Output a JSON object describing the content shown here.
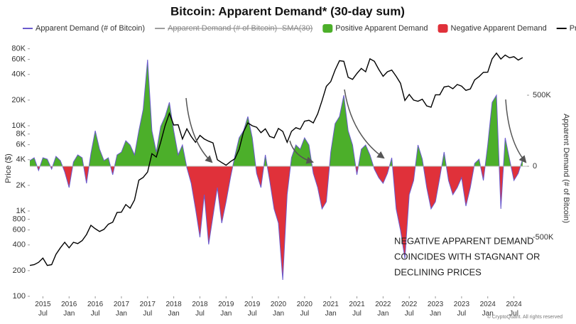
{
  "chart_data": {
    "type": "dual-axis-area-line",
    "title": "Bitcoin: Apparent Demand* (30-day sum)",
    "y_label": "Price ($)",
    "y2_label": "Apparent Demand (# of Bitcoin)",
    "annotation": [
      "NEGATIVE APPARENT DEMAND",
      "COINCIDES WITH STAGNANT OR",
      "DECLINING PRICES"
    ],
    "copyright": "© CryptoQuant. All rights reserved",
    "log_y": true,
    "xlim": [
      "2015-04",
      "2024-10"
    ],
    "xticks": [
      {
        "value": "2015-07",
        "label": "2015 Jul"
      },
      {
        "value": "2016-01",
        "label": "2016 Jan"
      },
      {
        "value": "2016-07",
        "label": "2016 Jul"
      },
      {
        "value": "2017-01",
        "label": "2017 Jan"
      },
      {
        "value": "2017-07",
        "label": "2017 Jul"
      },
      {
        "value": "2018-01",
        "label": "2018 Jan"
      },
      {
        "value": "2018-07",
        "label": "2018 Jul"
      },
      {
        "value": "2019-01",
        "label": "2019 Jan"
      },
      {
        "value": "2019-07",
        "label": "2019 Jul"
      },
      {
        "value": "2020-01",
        "label": "2020 Jan"
      },
      {
        "value": "2020-07",
        "label": "2020 Jul"
      },
      {
        "value": "2021-01",
        "label": "2021 Jan"
      },
      {
        "value": "2021-07",
        "label": "2021 Jul"
      },
      {
        "value": "2022-01",
        "label": "2022 Jan"
      },
      {
        "value": "2022-07",
        "label": "2022 Jul"
      },
      {
        "value": "2023-01",
        "label": "2023 Jan"
      },
      {
        "value": "2023-07",
        "label": "2023 Jul"
      },
      {
        "value": "2024-01",
        "label": "2024 Jan"
      },
      {
        "value": "2024-07",
        "label": "2024 Jul"
      }
    ],
    "ylim": [
      100,
      100000
    ],
    "yticks": [
      100,
      200,
      400,
      600,
      800,
      {
        "value": 1000,
        "label": "1K"
      },
      {
        "value": 2000,
        "label": "2K"
      },
      {
        "value": 4000,
        "label": "4K"
      },
      {
        "value": 6000,
        "label": "6K"
      },
      {
        "value": 8000,
        "label": "8K"
      },
      {
        "value": 10000,
        "label": "10K"
      },
      {
        "value": 20000,
        "label": "20K"
      },
      {
        "value": 40000,
        "label": "40K"
      },
      {
        "value": 60000,
        "label": "60K"
      },
      {
        "value": 80000,
        "label": "80K"
      }
    ],
    "y2lim": [
      -915000,
      885000
    ],
    "y2ticks": [
      {
        "value": -500000,
        "label": "-500K"
      },
      0,
      {
        "value": 500000,
        "label": "500K"
      }
    ],
    "x": [
      "2015-04",
      "2015-05",
      "2015-06",
      "2015-07",
      "2015-08",
      "2015-09",
      "2015-10",
      "2015-11",
      "2015-12",
      "2016-01",
      "2016-02",
      "2016-03",
      "2016-04",
      "2016-05",
      "2016-06",
      "2016-07",
      "2016-08",
      "2016-09",
      "2016-10",
      "2016-11",
      "2016-12",
      "2017-01",
      "2017-02",
      "2017-03",
      "2017-04",
      "2017-05",
      "2017-06",
      "2017-07",
      "2017-08",
      "2017-09",
      "2017-10",
      "2017-11",
      "2017-12",
      "2018-01",
      "2018-02",
      "2018-03",
      "2018-04",
      "2018-05",
      "2018-06",
      "2018-07",
      "2018-08",
      "2018-09",
      "2018-10",
      "2018-11",
      "2018-12",
      "2019-01",
      "2019-02",
      "2019-03",
      "2019-04",
      "2019-05",
      "2019-06",
      "2019-07",
      "2019-08",
      "2019-09",
      "2019-10",
      "2019-11",
      "2019-12",
      "2020-01",
      "2020-02",
      "2020-03",
      "2020-04",
      "2020-05",
      "2020-06",
      "2020-07",
      "2020-08",
      "2020-09",
      "2020-10",
      "2020-11",
      "2020-12",
      "2021-01",
      "2021-02",
      "2021-03",
      "2021-04",
      "2021-05",
      "2021-06",
      "2021-07",
      "2021-08",
      "2021-09",
      "2021-10",
      "2021-11",
      "2021-12",
      "2022-01",
      "2022-02",
      "2022-03",
      "2022-04",
      "2022-05",
      "2022-06",
      "2022-07",
      "2022-08",
      "2022-09",
      "2022-10",
      "2022-11",
      "2022-12",
      "2023-01",
      "2023-02",
      "2023-03",
      "2023-04",
      "2023-05",
      "2023-06",
      "2023-07",
      "2023-08",
      "2023-09",
      "2023-10",
      "2023-11",
      "2023-12",
      "2024-01",
      "2024-02",
      "2024-03",
      "2024-04",
      "2024-05",
      "2024-06",
      "2024-07",
      "2024-08",
      "2024-09"
    ],
    "series": [
      {
        "name": "Apparent Demand (# of Bitcoin)",
        "color": "#6a5acd",
        "axis": "y2",
        "values": [
          40000,
          60000,
          -30000,
          60000,
          50000,
          -20000,
          70000,
          40000,
          -40000,
          -150000,
          30000,
          80000,
          60000,
          -120000,
          90000,
          250000,
          120000,
          40000,
          60000,
          -60000,
          80000,
          100000,
          180000,
          150000,
          80000,
          250000,
          400000,
          750000,
          250000,
          100000,
          280000,
          350000,
          450000,
          250000,
          80000,
          150000,
          -10000,
          -120000,
          -300000,
          -500000,
          -200000,
          -550000,
          -350000,
          -150000,
          -400000,
          -250000,
          -80000,
          70000,
          200000,
          250000,
          350000,
          200000,
          -50000,
          -150000,
          80000,
          -100000,
          -300000,
          -400000,
          -800000,
          -200000,
          60000,
          150000,
          120000,
          200000,
          150000,
          -50000,
          -150000,
          -300000,
          -250000,
          100000,
          300000,
          350000,
          500000,
          250000,
          150000,
          -60000,
          120000,
          150000,
          80000,
          -20000,
          -80000,
          -120000,
          -50000,
          60000,
          -300000,
          -450000,
          -650000,
          -200000,
          -100000,
          150000,
          50000,
          -150000,
          -300000,
          -250000,
          -80000,
          100000,
          -100000,
          -200000,
          -150000,
          -80000,
          -280000,
          -150000,
          20000,
          50000,
          -100000,
          150000,
          450000,
          500000,
          -300000,
          200000,
          50000,
          -100000,
          -50000,
          50000
        ]
      },
      {
        "name": "Price",
        "color": "#000000",
        "values": [
          230,
          235,
          250,
          280,
          230,
          235,
          310,
          370,
          430,
          370,
          430,
          415,
          450,
          530,
          680,
          620,
          575,
          610,
          700,
          740,
          960,
          970,
          1190,
          1080,
          1350,
          2300,
          2480,
          2870,
          4700,
          4300,
          6400,
          10000,
          14000,
          10200,
          10300,
          7000,
          9200,
          7500,
          6400,
          7700,
          7000,
          6600,
          6300,
          4000,
          3700,
          3450,
          3800,
          4100,
          5300,
          8500,
          10800,
          10000,
          9600,
          8300,
          9200,
          7500,
          7200,
          9300,
          8600,
          6400,
          8600,
          9500,
          9100,
          11300,
          11600,
          10800,
          13800,
          19700,
          29000,
          33000,
          45000,
          58000,
          57000,
          37000,
          35000,
          41000,
          47000,
          43000,
          61000,
          57000,
          46000,
          38000,
          43000,
          45000,
          38000,
          31500,
          19800,
          23300,
          20000,
          19400,
          20500,
          17100,
          16500,
          23100,
          23100,
          28500,
          29200,
          27200,
          30500,
          29200,
          26000,
          27000,
          34500,
          37700,
          42300,
          42500,
          61000,
          71000,
          60600,
          67500,
          62700,
          64600,
          59000,
          63000
        ]
      }
    ],
    "hidden_series": [
      {
        "name": "Apparent Demand (# of Bitcoin)- SMA(30)",
        "color": "#9e9e9e"
      }
    ],
    "fills": [
      {
        "name": "Positive Apparent Demand",
        "color": "#4caf2a"
      },
      {
        "name": "Negative Apparent Demand",
        "color": "#e0313a"
      }
    ]
  }
}
